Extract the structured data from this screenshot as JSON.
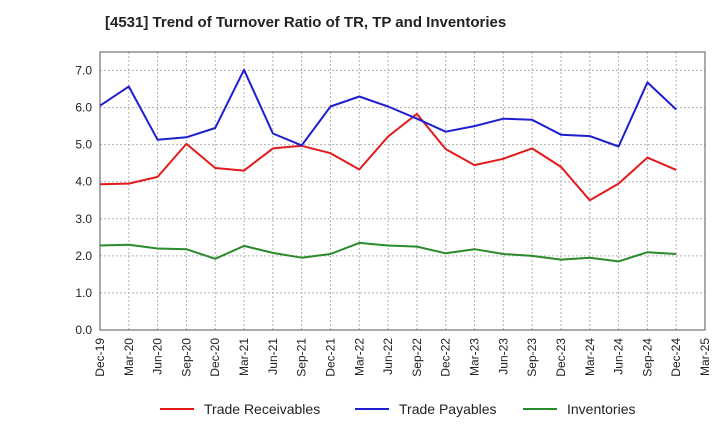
{
  "chart_data": {
    "type": "line",
    "title": "[4531]  Trend of Turnover Ratio of TR, TP and Inventories",
    "xlabel": "",
    "ylabel": "",
    "ylim": [
      0,
      7.5
    ],
    "yticks": [
      "0.0",
      "1.0",
      "2.0",
      "3.0",
      "4.0",
      "5.0",
      "6.0",
      "7.0"
    ],
    "x_tick_labels": [
      "Dec-19",
      "Mar-20",
      "Jun-20",
      "Sep-20",
      "Dec-20",
      "Mar-21",
      "Jun-21",
      "Sep-21",
      "Dec-21",
      "Mar-22",
      "Jun-22",
      "Sep-22",
      "Dec-22",
      "Mar-23",
      "Jun-23",
      "Sep-23",
      "Dec-23",
      "Mar-24",
      "Jun-24",
      "Sep-24",
      "Dec-24",
      "Mar-25"
    ],
    "x": [
      "Dec-19",
      "Mar-20",
      "Jun-20",
      "Sep-20",
      "Dec-20",
      "Mar-21",
      "Jun-21",
      "Sep-21",
      "Dec-21",
      "Mar-22",
      "Jun-22",
      "Sep-22",
      "Dec-22",
      "Mar-23",
      "Jun-23",
      "Sep-23",
      "Dec-23",
      "Mar-24",
      "Jun-24",
      "Sep-24",
      "Dec-24"
    ],
    "grid": true,
    "legend_position": "bottom",
    "series": [
      {
        "name": "Trade Receivables",
        "color": "#e31a1c",
        "values": [
          3.93,
          3.95,
          4.13,
          5.02,
          4.37,
          4.3,
          4.9,
          4.97,
          4.77,
          4.33,
          5.22,
          5.83,
          4.88,
          4.45,
          4.62,
          4.9,
          4.4,
          3.5,
          3.95,
          4.65,
          4.32
        ]
      },
      {
        "name": "Trade Payables",
        "color": "#1f1fd0",
        "values": [
          6.05,
          6.57,
          5.13,
          5.2,
          5.45,
          7.02,
          5.3,
          4.98,
          6.03,
          6.3,
          6.03,
          5.7,
          5.35,
          5.5,
          5.7,
          5.67,
          5.27,
          5.23,
          4.95,
          6.68,
          5.95
        ]
      },
      {
        "name": "Inventories",
        "color": "#2b8a2b",
        "values": [
          2.28,
          2.3,
          2.2,
          2.18,
          1.92,
          2.27,
          2.08,
          1.95,
          2.05,
          2.35,
          2.28,
          2.25,
          2.07,
          2.18,
          2.05,
          2.0,
          1.9,
          1.95,
          1.85,
          2.1,
          2.05
        ]
      }
    ]
  }
}
